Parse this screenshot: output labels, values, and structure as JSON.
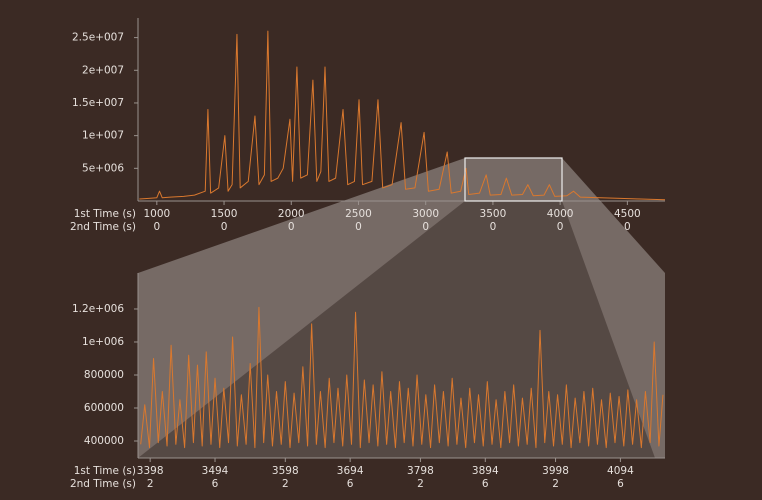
{
  "chart_data": [
    {
      "type": "line",
      "xlabel": "1st Time (s)",
      "xlabel2": "2nd Time (s)",
      "xlim": [
        860,
        4780
      ],
      "xticks": [
        1000,
        1500,
        2000,
        2500,
        3000,
        3500,
        4000,
        4500
      ],
      "xticks2": [
        0,
        0,
        0,
        0,
        0,
        0,
        0,
        0
      ],
      "ylim": [
        0,
        28000000
      ],
      "yticks": [
        {
          "value": 5000000,
          "label": "5e+006"
        },
        {
          "value": 10000000,
          "label": "1e+007"
        },
        {
          "value": 15000000,
          "label": "1.5e+007"
        },
        {
          "value": 20000000,
          "label": "2e+007"
        },
        {
          "value": 25000000,
          "label": "2.5e+007"
        }
      ],
      "color": "#d9782e",
      "x": [
        870,
        940,
        1000,
        1020,
        1040,
        1100,
        1200,
        1280,
        1360,
        1380,
        1400,
        1460,
        1506,
        1530,
        1560,
        1596,
        1620,
        1680,
        1730,
        1760,
        1800,
        1826,
        1850,
        1900,
        1940,
        1990,
        2010,
        2042,
        2070,
        2120,
        2161,
        2190,
        2220,
        2251,
        2280,
        2330,
        2385,
        2420,
        2470,
        2504,
        2530,
        2600,
        2645,
        2680,
        2750,
        2817,
        2850,
        2920,
        2988,
        3020,
        3100,
        3160,
        3190,
        3260,
        3300,
        3320,
        3400,
        3450,
        3480,
        3560,
        3600,
        3640,
        3720,
        3760,
        3800,
        3880,
        3920,
        3960,
        4050,
        4100,
        4150,
        4300,
        4450,
        4600,
        4780
      ],
      "values": [
        300000,
        400000,
        500000,
        1500000,
        500000,
        600000,
        700000,
        900000,
        1500000,
        14000000,
        1200000,
        2000000,
        10000000,
        1500000,
        2500000,
        25500000,
        2000000,
        3000000,
        13000000,
        2500000,
        4000000,
        26000000,
        3000000,
        3500000,
        5000000,
        12500000,
        3000000,
        20500000,
        3500000,
        4000000,
        18500000,
        3000000,
        4500000,
        20500000,
        3000000,
        3500000,
        14000000,
        2500000,
        3000000,
        15500000,
        2500000,
        3000000,
        15500000,
        2000000,
        2500000,
        12000000,
        1800000,
        2000000,
        10500000,
        1500000,
        1800000,
        7500000,
        1200000,
        1500000,
        5000000,
        1000000,
        1200000,
        4000000,
        900000,
        1000000,
        3500000,
        900000,
        1000000,
        2500000,
        800000,
        900000,
        2500000,
        700000,
        800000,
        1500000,
        600000,
        500000,
        400000,
        300000,
        200000
      ]
    },
    {
      "type": "line",
      "xlabel": "1st Time (s)",
      "xlabel2": "2nd Time (s)",
      "xlim": [
        3380,
        4160
      ],
      "xticks": [
        3398,
        3494,
        3598,
        3694,
        3798,
        3894,
        3998,
        4094
      ],
      "xticks2": [
        2,
        6,
        2,
        6,
        2,
        6,
        2,
        6
      ],
      "ylim": [
        297000,
        1418000
      ],
      "yticks": [
        400000,
        600000,
        800000,
        {
          "value": 1000000,
          "label": "1e+006"
        },
        {
          "value": 1200000,
          "label": "1.2e+006"
        }
      ],
      "color": "#d9782e",
      "x": [
        3384,
        3390,
        3397,
        3403,
        3410,
        3416,
        3423,
        3429,
        3436,
        3442,
        3449,
        3455,
        3462,
        3468,
        3475,
        3481,
        3488,
        3494,
        3501,
        3507,
        3514,
        3520,
        3527,
        3533,
        3540,
        3546,
        3553,
        3559,
        3566,
        3572,
        3579,
        3585,
        3592,
        3598,
        3605,
        3611,
        3618,
        3624,
        3631,
        3637,
        3644,
        3650,
        3657,
        3663,
        3670,
        3676,
        3683,
        3689,
        3696,
        3702,
        3709,
        3715,
        3722,
        3728,
        3735,
        3741,
        3748,
        3754,
        3761,
        3767,
        3774,
        3780,
        3787,
        3793,
        3800,
        3806,
        3813,
        3819,
        3826,
        3832,
        3839,
        3845,
        3852,
        3858,
        3865,
        3871,
        3878,
        3884,
        3891,
        3897,
        3904,
        3910,
        3917,
        3923,
        3930,
        3936,
        3943,
        3949,
        3956,
        3962,
        3969,
        3975,
        3982,
        3988,
        3995,
        4001,
        4008,
        4014,
        4021,
        4027,
        4034,
        4040,
        4047,
        4053,
        4060,
        4066,
        4073,
        4079,
        4086,
        4092,
        4099,
        4105,
        4112,
        4118,
        4125,
        4131,
        4138,
        4144,
        4151,
        4157
      ],
      "values": [
        380000,
        620000,
        360000,
        900000,
        390000,
        700000,
        370000,
        980000,
        380000,
        650000,
        360000,
        920000,
        390000,
        860000,
        370000,
        940000,
        380000,
        780000,
        360000,
        720000,
        390000,
        1030000,
        370000,
        680000,
        380000,
        870000,
        360000,
        1210000,
        390000,
        800000,
        370000,
        700000,
        380000,
        760000,
        360000,
        690000,
        390000,
        850000,
        370000,
        1110000,
        380000,
        700000,
        360000,
        780000,
        390000,
        720000,
        370000,
        800000,
        380000,
        1180000,
        360000,
        770000,
        390000,
        740000,
        370000,
        820000,
        380000,
        700000,
        360000,
        760000,
        390000,
        720000,
        370000,
        800000,
        380000,
        680000,
        360000,
        740000,
        390000,
        700000,
        370000,
        780000,
        380000,
        660000,
        360000,
        720000,
        390000,
        680000,
        370000,
        760000,
        380000,
        650000,
        360000,
        700000,
        390000,
        740000,
        370000,
        660000,
        380000,
        720000,
        360000,
        1070000,
        390000,
        700000,
        370000,
        680000,
        380000,
        740000,
        360000,
        660000,
        390000,
        700000,
        370000,
        720000,
        380000,
        650000,
        360000,
        690000,
        390000,
        670000,
        370000,
        710000,
        380000,
        650000,
        360000,
        700000,
        390000,
        1000000,
        370000,
        680000
      ]
    }
  ]
}
